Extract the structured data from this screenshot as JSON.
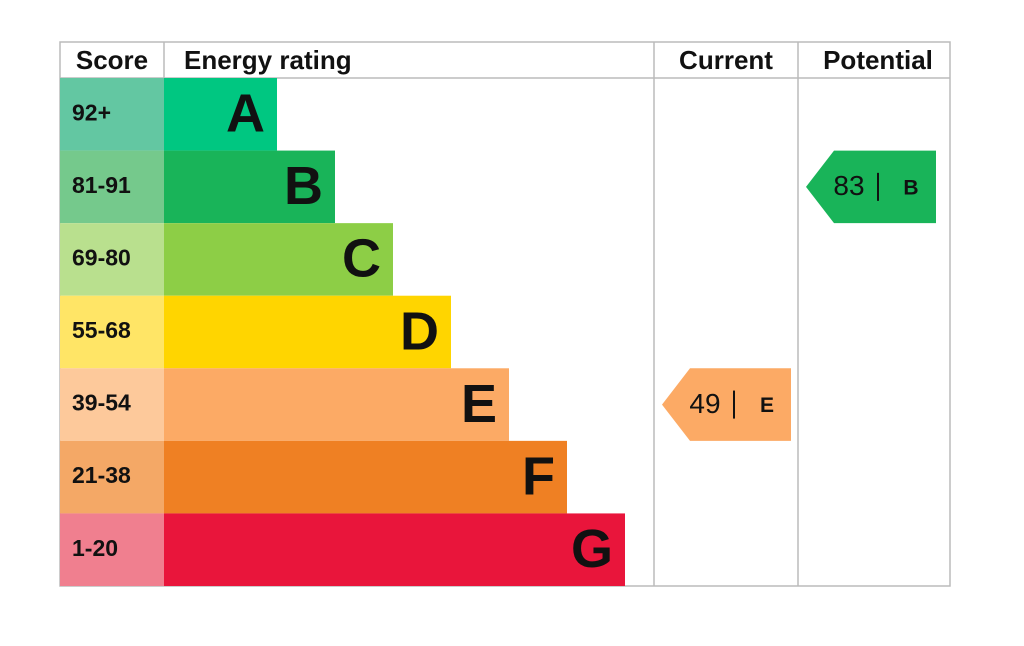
{
  "headers": {
    "score": "Score",
    "energy_rating": "Energy rating",
    "current": "Current",
    "potential": "Potential"
  },
  "bands": [
    {
      "score": "92+",
      "letter": "A",
      "color": "#00c781",
      "score_color": "#63c7a2"
    },
    {
      "score": "81-91",
      "letter": "B",
      "color": "#19b459",
      "score_color": "#75c98c"
    },
    {
      "score": "69-80",
      "letter": "C",
      "color": "#8dce46",
      "score_color": "#b9e08e"
    },
    {
      "score": "55-68",
      "letter": "D",
      "color": "#ffd500",
      "score_color": "#ffe566"
    },
    {
      "score": "39-54",
      "letter": "E",
      "color": "#fcaa65",
      "score_color": "#fdc99b"
    },
    {
      "score": "21-38",
      "letter": "F",
      "color": "#ef8023",
      "score_color": "#f4a866"
    },
    {
      "score": "1-20",
      "letter": "G",
      "color": "#e9153b",
      "score_color": "#f07f8f"
    }
  ],
  "current": {
    "value": 49,
    "rating": "E"
  },
  "potential": {
    "value": 83,
    "rating": "B"
  }
}
